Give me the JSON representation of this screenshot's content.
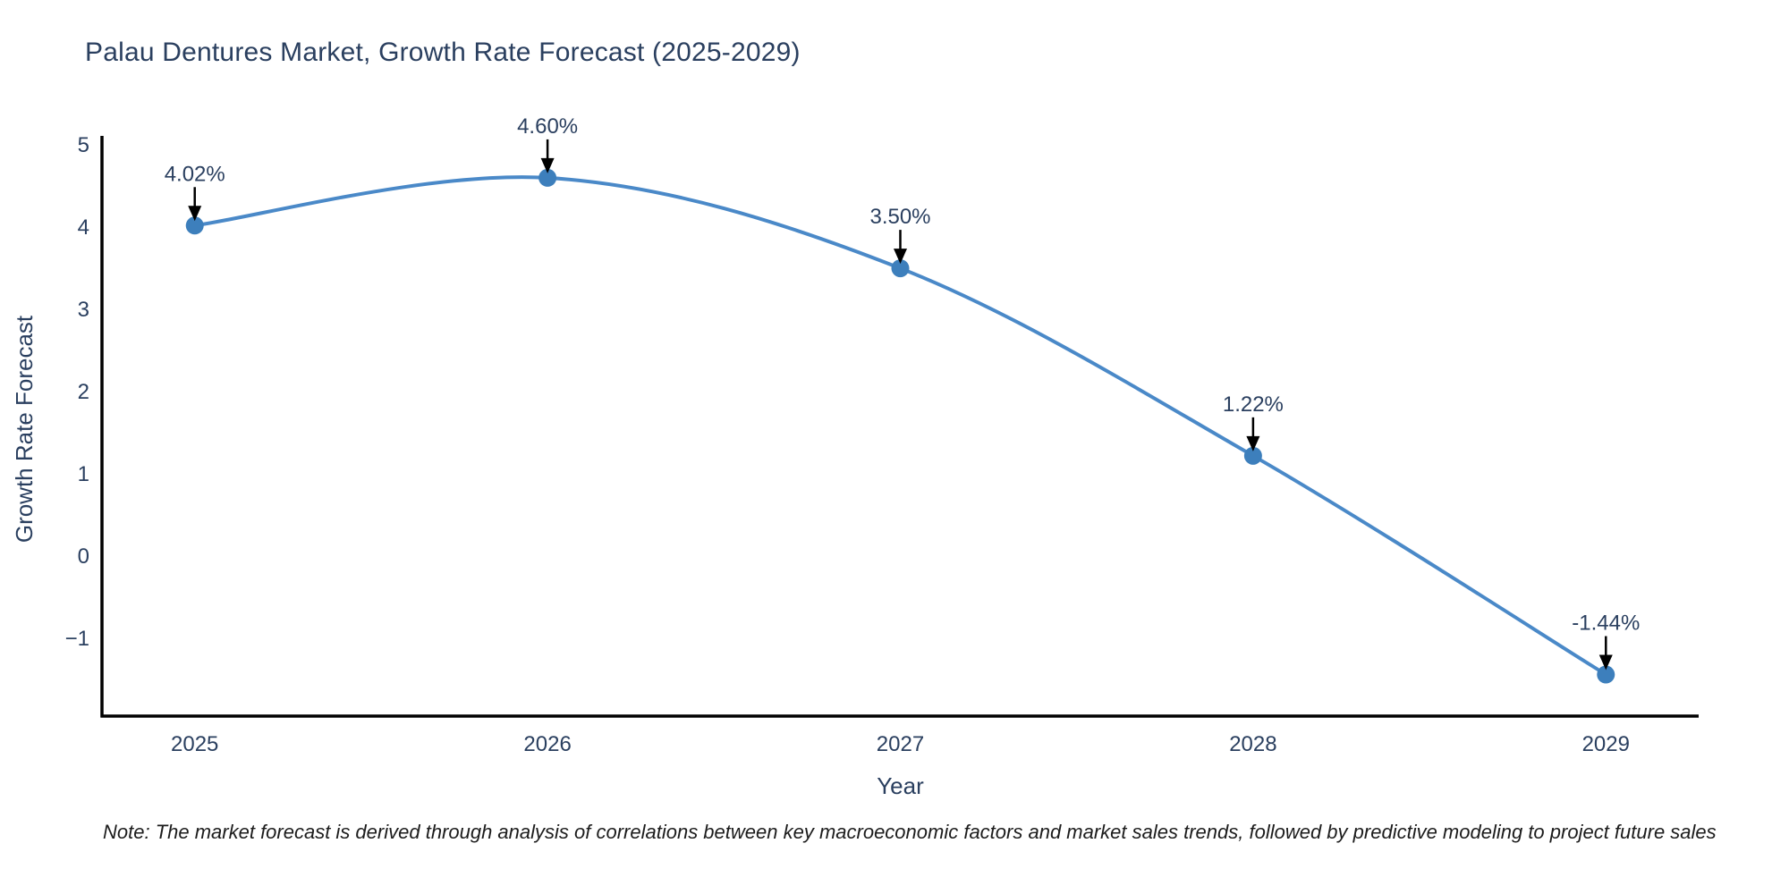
{
  "title": "Palau Dentures Market, Growth Rate Forecast (2025-2029)",
  "note": "Note: The market forecast is derived through analysis of correlations between key macroeconomic factors and market sales trends, followed by predictive modeling to project future sales",
  "chart_data": {
    "type": "line",
    "title": "Palau Dentures Market, Growth Rate Forecast (2025-2029)",
    "x": [
      2025,
      2026,
      2027,
      2028,
      2029
    ],
    "values": [
      4.02,
      4.6,
      3.5,
      1.22,
      -1.44
    ],
    "point_labels": [
      "4.02%",
      "4.60%",
      "3.50%",
      "1.22%",
      "-1.44%"
    ],
    "xlabel": "Year",
    "ylabel": "Growth Rate Forecast",
    "x_tick_labels": [
      "2025",
      "2026",
      "2027",
      "2028",
      "2029"
    ],
    "y_ticks": [
      5,
      4,
      3,
      2,
      1,
      0,
      -1
    ],
    "y_tick_labels": [
      "5",
      "4",
      "3",
      "2",
      "1",
      "0",
      "−1"
    ],
    "xlim": [
      2024.737,
      2029.263
    ],
    "ylim": [
      -1.945,
      5.11
    ],
    "grid": false,
    "legend": "none",
    "curve": "spline",
    "colors": {
      "line": "#4a89c8",
      "marker": "#3d7fbc",
      "axis": "#000000",
      "tick_text": "#2a3f5f",
      "axis_title_text": "#2a3f5f",
      "annotation_text": "#2a3f5f",
      "annotation_arrow": "#000000",
      "background": "#ffffff"
    }
  }
}
